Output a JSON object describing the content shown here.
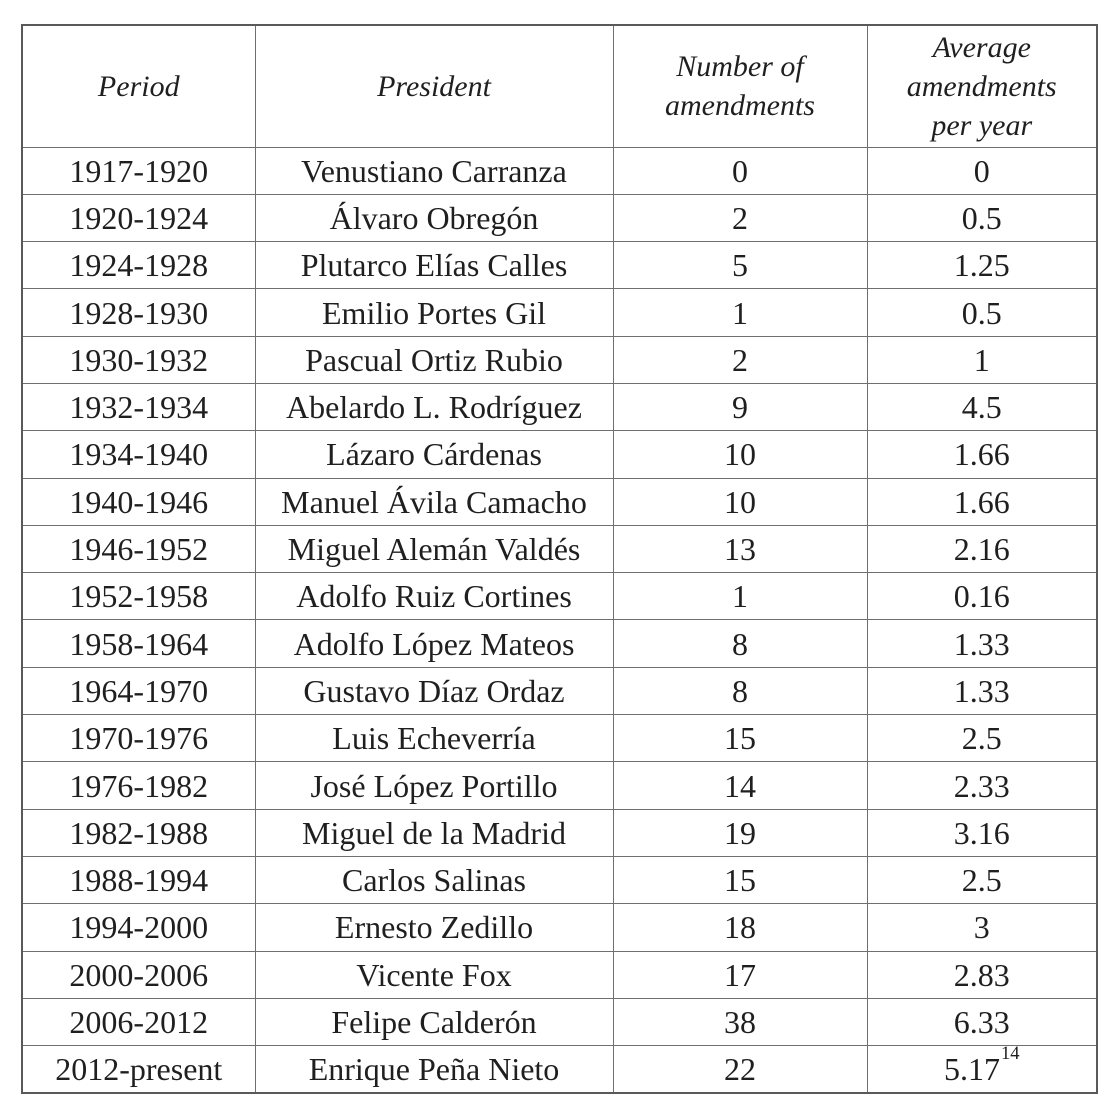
{
  "table": {
    "headers": {
      "period": "Period",
      "president": "President",
      "amendments": "Number of\namendments",
      "average": "Average\namendments\nper year"
    },
    "rows": [
      {
        "period": "1917-1920",
        "president": "Venustiano Carranza",
        "amendments": "0",
        "average": "0"
      },
      {
        "period": "1920-1924",
        "president": "Álvaro Obregón",
        "amendments": "2",
        "average": "0.5"
      },
      {
        "period": "1924-1928",
        "president": "Plutarco Elías Calles",
        "amendments": "5",
        "average": "1.25"
      },
      {
        "period": "1928-1930",
        "president": "Emilio Portes Gil",
        "amendments": "1",
        "average": "0.5"
      },
      {
        "period": "1930-1932",
        "president": "Pascual Ortiz Rubio",
        "amendments": "2",
        "average": "1"
      },
      {
        "period": "1932-1934",
        "president": "Abelardo L. Rodríguez",
        "amendments": "9",
        "average": "4.5"
      },
      {
        "period": "1934-1940",
        "president": "Lázaro Cárdenas",
        "amendments": "10",
        "average": "1.66"
      },
      {
        "period": "1940-1946",
        "president": "Manuel Ávila Camacho",
        "amendments": "10",
        "average": "1.66"
      },
      {
        "period": "1946-1952",
        "president": "Miguel Alemán Valdés",
        "amendments": "13",
        "average": "2.16"
      },
      {
        "period": "1952-1958",
        "president": "Adolfo Ruiz Cortines",
        "amendments": "1",
        "average": "0.16"
      },
      {
        "period": "1958-1964",
        "president": "Adolfo López Mateos",
        "amendments": "8",
        "average": "1.33"
      },
      {
        "period": "1964-1970",
        "president": "Gustavo Díaz Ordaz",
        "amendments": "8",
        "average": "1.33"
      },
      {
        "period": "1970-1976",
        "president": "Luis Echeverría",
        "amendments": "15",
        "average": "2.5"
      },
      {
        "period": "1976-1982",
        "president": "José López Portillo",
        "amendments": "14",
        "average": "2.33"
      },
      {
        "period": "1982-1988",
        "president": "Miguel de la Madrid",
        "amendments": "19",
        "average": "3.16"
      },
      {
        "period": "1988-1994",
        "president": "Carlos Salinas",
        "amendments": "15",
        "average": "2.5"
      },
      {
        "period": "1994-2000",
        "president": "Ernesto Zedillo",
        "amendments": "18",
        "average": "3"
      },
      {
        "period": "2000-2006",
        "president": "Vicente Fox",
        "amendments": "17",
        "average": "2.83"
      },
      {
        "period": "2006-2012",
        "president": "Felipe Calderón",
        "amendments": "38",
        "average": "6.33"
      },
      {
        "period": "2012-present",
        "president": "Enrique Peña Nieto",
        "amendments": "22",
        "average": "5.17",
        "footnote": "14"
      }
    ]
  }
}
